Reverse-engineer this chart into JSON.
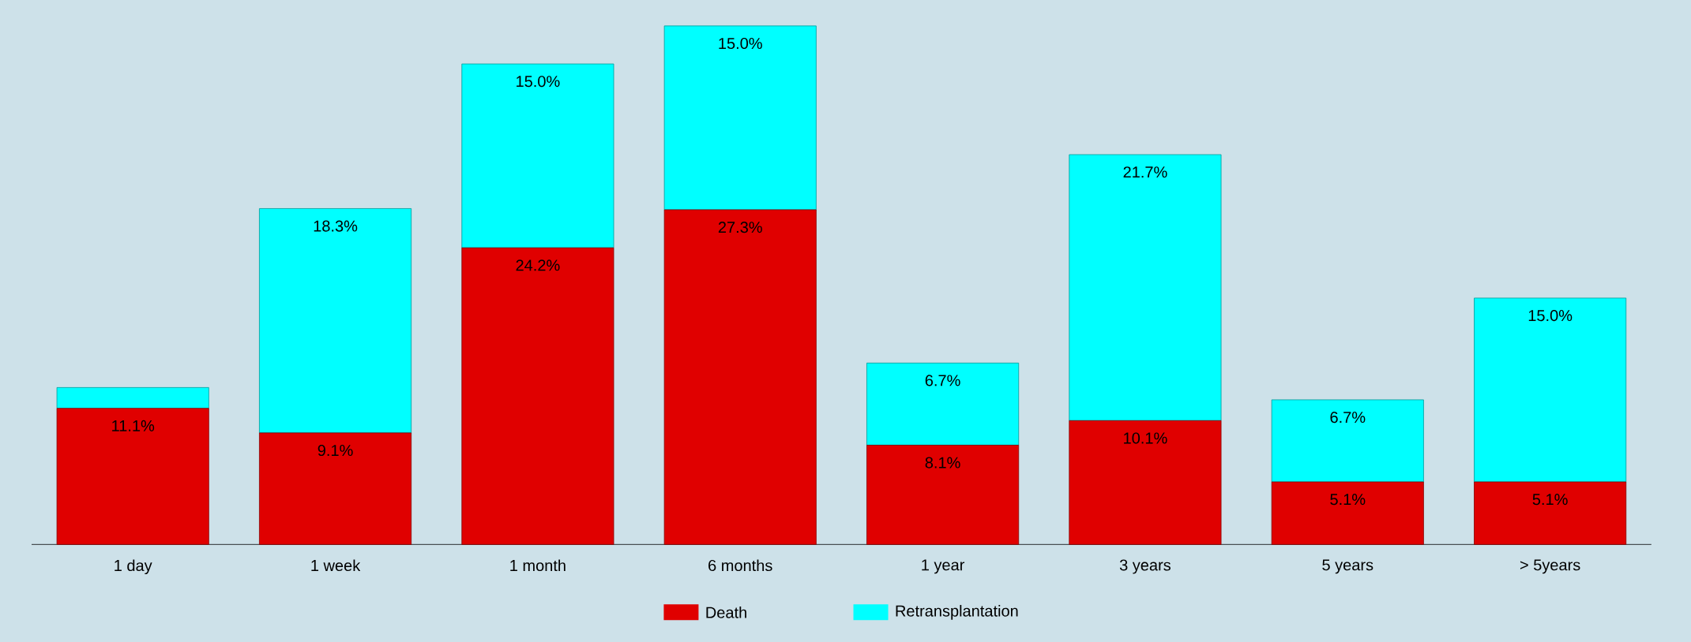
{
  "chart_data": {
    "type": "bar",
    "stacked": true,
    "legend": "bottom",
    "categories": [
      "1 day",
      "1 week",
      "1 month",
      "6 months",
      "1 year",
      "3 years",
      "5 years",
      "> 5years"
    ],
    "series": [
      {
        "name": "Death",
        "color": "#e00000",
        "values": [
          11.1,
          9.1,
          24.2,
          27.3,
          8.1,
          10.1,
          5.1,
          5.1
        ],
        "value_labels": [
          "11.1%",
          "9.1%",
          "24.2%",
          "27.3%",
          "8.1%",
          "10.1%",
          "5.1%",
          "5.1%"
        ]
      },
      {
        "name": "Retransplantation",
        "color": "#00ffff",
        "values": [
          1.7,
          18.3,
          15.0,
          15.0,
          6.7,
          21.7,
          6.7,
          15.0
        ],
        "value_labels": [
          null,
          "18.3%",
          "15.0%",
          "15.0%",
          "6.7%",
          "21.7%",
          "6.7%",
          "15.0%"
        ]
      }
    ]
  }
}
